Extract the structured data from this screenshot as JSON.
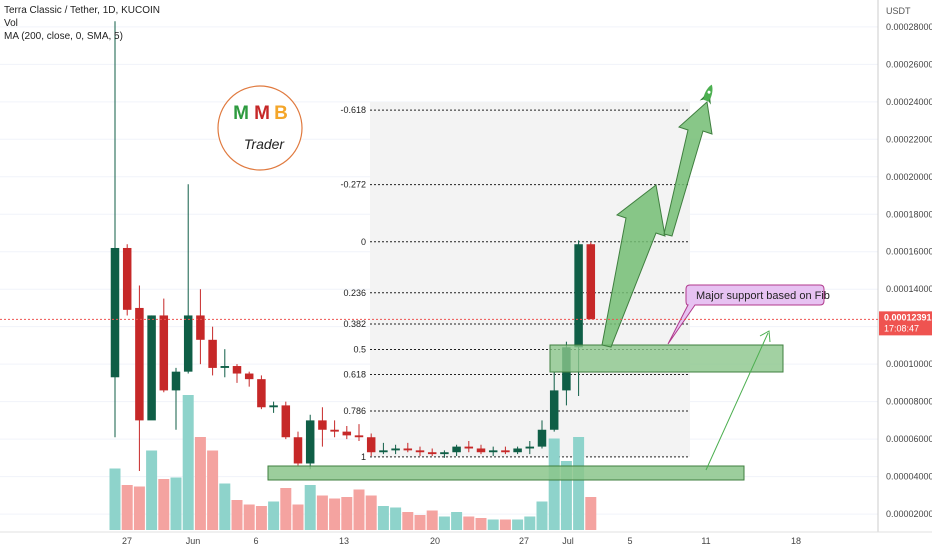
{
  "legend": {
    "symbol": "Terra Classic / Tether, 1D, KUCOIN",
    "vol": "Vol",
    "ma": "MA (200, close, 0, SMA, 5)"
  },
  "price_axis": {
    "currency": "USDT",
    "ticks": [
      "0.00028000",
      "0.00026000",
      "0.00024000",
      "0.00022000",
      "0.00020000",
      "0.00018000",
      "0.00016000",
      "0.00014000",
      "0.00012000",
      "0.00010000",
      "0.00008000",
      "0.00006000",
      "0.00004000",
      "0.00002000"
    ],
    "last_price": "0.00012391",
    "countdown": "17:08:47"
  },
  "time_axis": [
    "27",
    "Jun",
    "6",
    "13",
    "20",
    "27",
    "Jul",
    "5",
    "11",
    "18"
  ],
  "fib_levels": [
    {
      "label": "-0.618",
      "price": 0.0002356
    },
    {
      "label": "-0.272",
      "price": 0.0001958
    },
    {
      "label": "0",
      "price": 0.0001653
    },
    {
      "label": "0.236",
      "price": 0.0001381
    },
    {
      "label": "0.382",
      "price": 0.0001214
    },
    {
      "label": "0.5",
      "price": 0.0001078
    },
    {
      "label": "0.618",
      "price": 9.45e-05
    },
    {
      "label": "0.786",
      "price": 7.5e-05
    },
    {
      "label": "1",
      "price": 5.05e-05
    }
  ],
  "logo": {
    "letters": [
      "M",
      "M",
      "B"
    ],
    "subtitle": "Trader"
  },
  "annotation": "Major support based on Fib",
  "colors": {
    "up": "#0f5e46",
    "down": "#c62828",
    "vol_up": "#8ed3cb",
    "vol_down": "#f4a3a0",
    "zone": "#8bc58b",
    "arrow": "#6ab86a",
    "price_line": "#ef5350"
  },
  "chart_data": {
    "type": "candlestick",
    "title": "Terra Classic / Tether, 1D, KUCOIN",
    "candles": [
      {
        "o": 9.3e-05,
        "h": 0.000283,
        "l": 6.1e-05,
        "c": 0.000162,
        "v": 4100000
      },
      {
        "o": 0.000162,
        "h": 0.000164,
        "l": 0.000126,
        "c": 0.000129,
        "v": 3000000
      },
      {
        "o": 0.00013,
        "h": 0.000142,
        "l": 4.3e-05,
        "c": 7e-05,
        "v": 2900000
      },
      {
        "o": 7e-05,
        "h": 0.000126,
        "l": 7.2e-05,
        "c": 0.000126,
        "v": 5300000
      },
      {
        "o": 0.000126,
        "h": 0.000135,
        "l": 8.5e-05,
        "c": 8.6e-05,
        "v": 3400000
      },
      {
        "o": 8.6e-05,
        "h": 9.8e-05,
        "l": 6.5e-05,
        "c": 9.6e-05,
        "v": 3500000
      },
      {
        "o": 9.6e-05,
        "h": 0.000196,
        "l": 9.5e-05,
        "c": 0.000126,
        "v": 9000000
      },
      {
        "o": 0.000126,
        "h": 0.00014,
        "l": 0.0001,
        "c": 0.000113,
        "v": 6200000
      },
      {
        "o": 0.000113,
        "h": 0.00012,
        "l": 9.4e-05,
        "c": 9.8e-05,
        "v": 5300000
      },
      {
        "o": 9.8e-05,
        "h": 0.000108,
        "l": 9.3e-05,
        "c": 9.9e-05,
        "v": 3100000
      },
      {
        "o": 9.9e-05,
        "h": 0.0001,
        "l": 9e-05,
        "c": 9.5e-05,
        "v": 2000000
      },
      {
        "o": 9.5e-05,
        "h": 9.6e-05,
        "l": 8.8e-05,
        "c": 9.2e-05,
        "v": 1700000
      },
      {
        "o": 9.2e-05,
        "h": 9.4e-05,
        "l": 7.6e-05,
        "c": 7.7e-05,
        "v": 1600000
      },
      {
        "o": 7.7e-05,
        "h": 8e-05,
        "l": 7.4e-05,
        "c": 7.8e-05,
        "v": 1900000
      },
      {
        "o": 7.8e-05,
        "h": 8e-05,
        "l": 6e-05,
        "c": 6.1e-05,
        "v": 2800000
      },
      {
        "o": 6.1e-05,
        "h": 6.4e-05,
        "l": 4.6e-05,
        "c": 4.7e-05,
        "v": 1700000
      },
      {
        "o": 4.7e-05,
        "h": 7.3e-05,
        "l": 4.4e-05,
        "c": 7e-05,
        "v": 3000000
      },
      {
        "o": 7e-05,
        "h": 7.7e-05,
        "l": 5.6e-05,
        "c": 6.5e-05,
        "v": 2300000
      },
      {
        "o": 6.5e-05,
        "h": 7e-05,
        "l": 6.1e-05,
        "c": 6.4e-05,
        "v": 2100000
      },
      {
        "o": 6.4e-05,
        "h": 6.7e-05,
        "l": 6e-05,
        "c": 6.2e-05,
        "v": 2200000
      },
      {
        "o": 6.2e-05,
        "h": 6.8e-05,
        "l": 5.9e-05,
        "c": 6.1e-05,
        "v": 2700000
      },
      {
        "o": 6.1e-05,
        "h": 6.3e-05,
        "l": 5.1e-05,
        "c": 5.3e-05,
        "v": 2300000
      },
      {
        "o": 5.3e-05,
        "h": 5.8e-05,
        "l": 5.2e-05,
        "c": 5.4e-05,
        "v": 1600000
      },
      {
        "o": 5.4e-05,
        "h": 5.7e-05,
        "l": 5.2e-05,
        "c": 5.5e-05,
        "v": 1500000
      },
      {
        "o": 5.5e-05,
        "h": 5.8e-05,
        "l": 5.3e-05,
        "c": 5.4e-05,
        "v": 1200000
      },
      {
        "o": 5.4e-05,
        "h": 5.6e-05,
        "l": 5.1e-05,
        "c": 5.3e-05,
        "v": 1000000
      },
      {
        "o": 5.3e-05,
        "h": 5.5e-05,
        "l": 5.1e-05,
        "c": 5.2e-05,
        "v": 1300000
      },
      {
        "o": 5.2e-05,
        "h": 5.4e-05,
        "l": 5e-05,
        "c": 5.3e-05,
        "v": 900000
      },
      {
        "o": 5.3e-05,
        "h": 5.7e-05,
        "l": 5.1e-05,
        "c": 5.6e-05,
        "v": 1200000
      },
      {
        "o": 5.6e-05,
        "h": 5.9e-05,
        "l": 5.3e-05,
        "c": 5.5e-05,
        "v": 900000
      },
      {
        "o": 5.5e-05,
        "h": 5.7e-05,
        "l": 5.2e-05,
        "c": 5.3e-05,
        "v": 800000
      },
      {
        "o": 5.3e-05,
        "h": 5.6e-05,
        "l": 5.1e-05,
        "c": 5.4e-05,
        "v": 700000
      },
      {
        "o": 5.4e-05,
        "h": 5.6e-05,
        "l": 5.2e-05,
        "c": 5.3e-05,
        "v": 700000
      },
      {
        "o": 5.3e-05,
        "h": 5.6e-05,
        "l": 5.2e-05,
        "c": 5.5e-05,
        "v": 700000
      },
      {
        "o": 5.5e-05,
        "h": 5.9e-05,
        "l": 5.2e-05,
        "c": 5.6e-05,
        "v": 900000
      },
      {
        "o": 5.6e-05,
        "h": 7e-05,
        "l": 5.5e-05,
        "c": 6.5e-05,
        "v": 1900000
      },
      {
        "o": 6.5e-05,
        "h": 9.6e-05,
        "l": 6.4e-05,
        "c": 8.6e-05,
        "v": 6100000
      },
      {
        "o": 8.6e-05,
        "h": 0.000112,
        "l": 7.8e-05,
        "c": 0.000109,
        "v": 4600000
      },
      {
        "o": 0.000109,
        "h": 0.000166,
        "l": 8.3e-05,
        "c": 0.000164,
        "v": 6200000
      },
      {
        "o": 0.000164,
        "h": 0.000165,
        "l": 0.000124,
        "c": 0.000124,
        "v": 2200000
      }
    ],
    "ylim": [
      1.15e-05,
      0.000289
    ],
    "volume_max": 9000000,
    "x_ticks": [
      "27",
      "Jun",
      "6",
      "13",
      "20",
      "27",
      "Jul",
      "5",
      "11",
      "18"
    ],
    "annotations": [
      "Major support based on Fib"
    ]
  }
}
